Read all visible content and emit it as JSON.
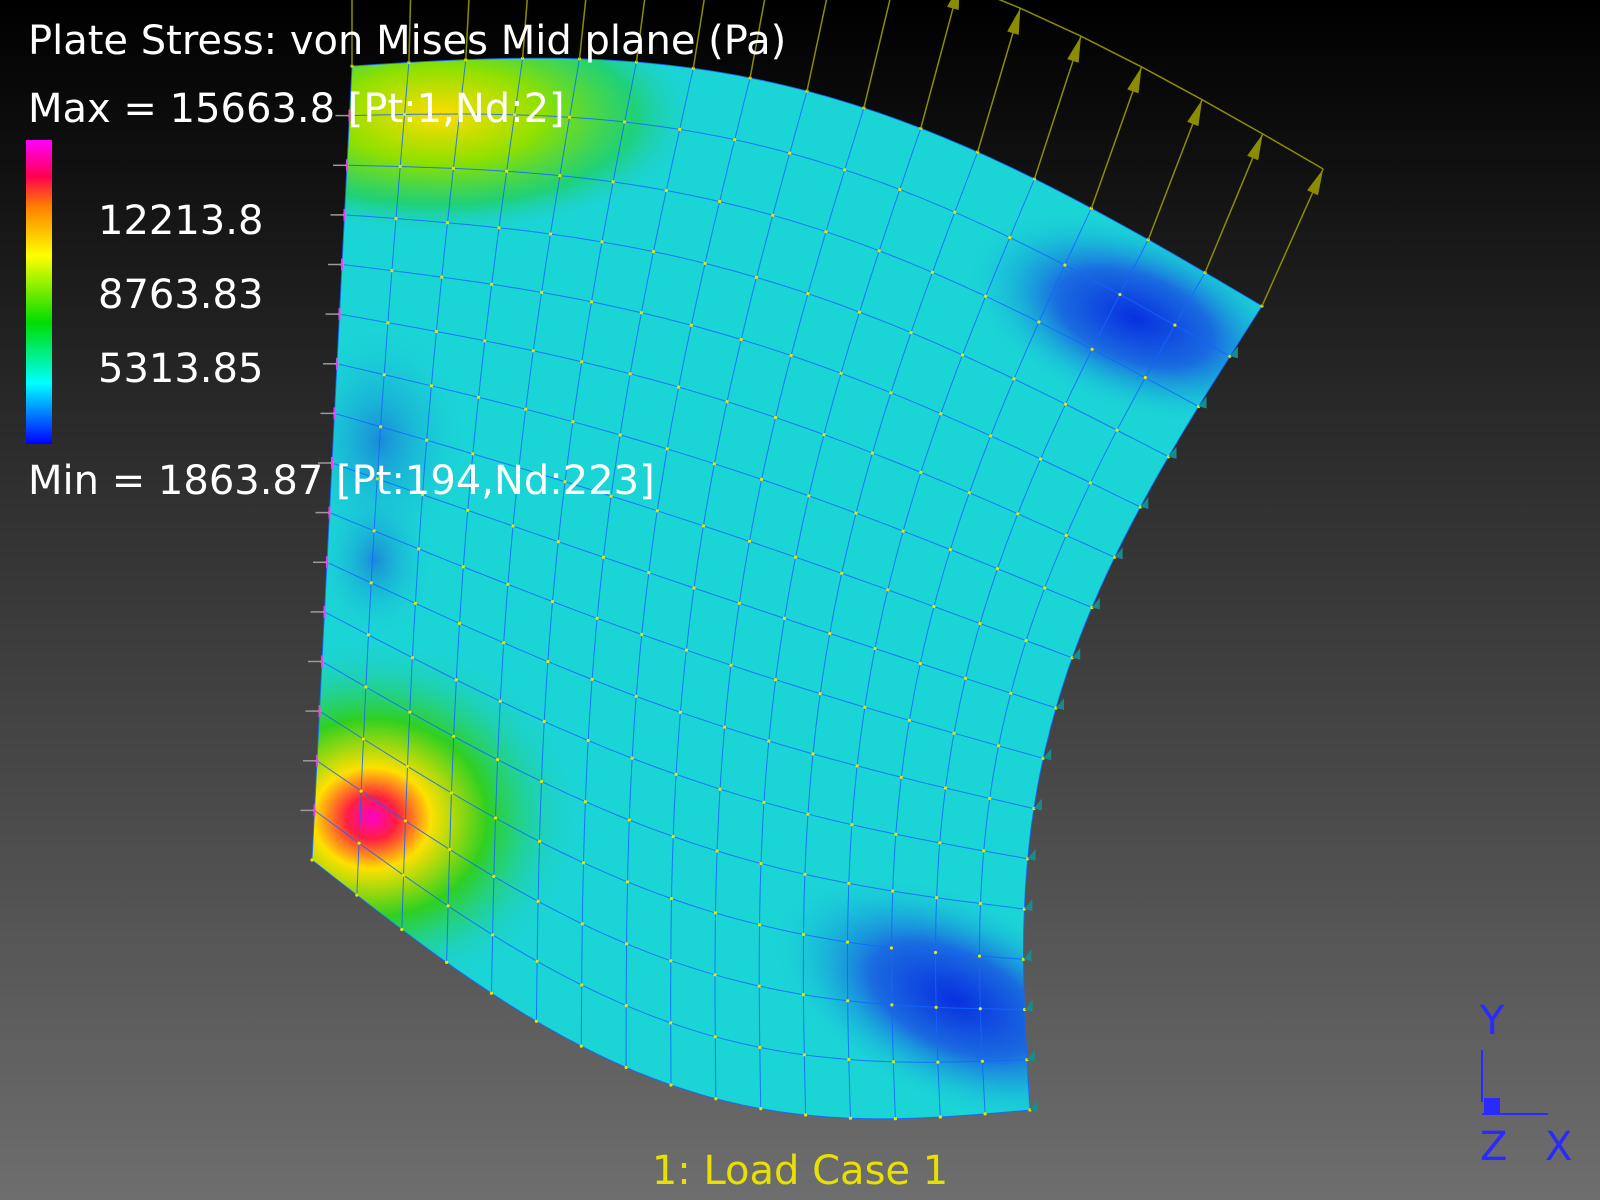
{
  "result_title": "Plate Stress: von Mises Mid plane (Pa)",
  "max_label": "Max = 15663.8 [Pt:1,Nd:2]",
  "min_label": "Min = 1863.87 [Pt:194,Nd:223]",
  "legend": {
    "values": [
      "12213.8",
      "8763.83",
      "5313.85"
    ],
    "max_value": 15663.8,
    "min_value": 1863.87
  },
  "load_case": "1: Load Case 1",
  "axes": {
    "y_label": "Y",
    "z_label": "Z",
    "x_label": "X"
  },
  "colors": {
    "load_case_text": "#e8e000",
    "axis_color": "#2a2aff",
    "mesh_line": "#1565ff",
    "node_dot": "#e6e600",
    "load_arrow": "#8c8c00"
  },
  "mesh": {
    "rows": 16,
    "cols": 16
  }
}
